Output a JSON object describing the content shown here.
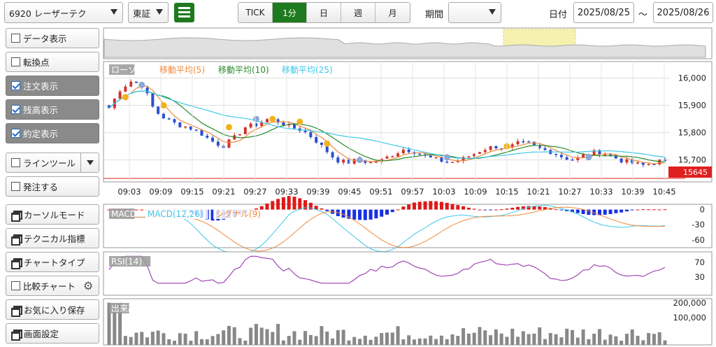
{
  "toolbar": {
    "symbol": "6920 レーザーテク",
    "market": "東証",
    "tabs": [
      "TICK",
      "1分",
      "日",
      "週",
      "月"
    ],
    "active_tab": "1分",
    "period_label": "期間",
    "period_value": "",
    "date_label": "日付",
    "date_from": "2025/08/25",
    "tilde": "～",
    "date_to": "2025/08/26"
  },
  "sidebar": {
    "items": [
      {
        "label": "データ表示",
        "kind": "check",
        "checked": false
      },
      {
        "label": "転換点",
        "kind": "check",
        "checked": false
      },
      {
        "label": "注文表示",
        "kind": "check",
        "checked": true
      },
      {
        "label": "残高表示",
        "kind": "check",
        "checked": true
      },
      {
        "label": "約定表示",
        "kind": "check",
        "checked": true
      },
      {
        "label": "ラインツール",
        "kind": "check-dropdown",
        "checked": false
      },
      {
        "label": "発注する",
        "kind": "check",
        "checked": false
      },
      {
        "label": "カーソルモード",
        "kind": "window"
      },
      {
        "label": "テクニカル指標",
        "kind": "window"
      },
      {
        "label": "チャートタイプ",
        "kind": "window"
      },
      {
        "label": "比較チャート",
        "kind": "check-gear",
        "checked": false
      },
      {
        "label": "お気に入り保存",
        "kind": "window"
      },
      {
        "label": "画面設定",
        "kind": "window"
      }
    ]
  },
  "chart_data": [
    {
      "type": "candlestick",
      "legend": [
        "ローソク",
        "移動平均(5)",
        "移動平均(10)",
        "移動平均(25)"
      ],
      "colors": {
        "up": "#d0342c",
        "down": "#2a4fd0",
        "ma5": "#f08a3c",
        "ma10": "#2a8a2a",
        "ma25": "#3cc8e8",
        "price_line": "#e02020"
      },
      "y_ticks": [
        16000,
        15900,
        15800,
        15700
      ],
      "ylim": [
        15630,
        16050
      ],
      "current_price": "15645",
      "x_ticks": [
        "09:03",
        "09:09",
        "09:15",
        "09:21",
        "09:27",
        "09:33",
        "09:39",
        "09:45",
        "09:51",
        "09:57",
        "10:03",
        "10:09",
        "10:15",
        "10:21",
        "10:27",
        "10:33",
        "10:39",
        "10:45"
      ],
      "approx_close_path": [
        15890,
        15960,
        15990,
        15970,
        15880,
        15850,
        15830,
        15820,
        15800,
        15770,
        15750,
        15780,
        15820,
        15830,
        15850,
        15840,
        15820,
        15810,
        15780,
        15740,
        15700,
        15690,
        15700,
        15690,
        15700,
        15720,
        15740,
        15730,
        15710,
        15700,
        15690,
        15700,
        15720,
        15740,
        15750,
        15740,
        15760,
        15760,
        15740,
        15730,
        15710,
        15700,
        15720,
        15730,
        15720,
        15700,
        15690,
        15680,
        15690,
        15700
      ]
    },
    {
      "type": "line",
      "name": "MACD",
      "legend": [
        "MACD",
        "MACD(12,26)",
        "シグナル(9)"
      ],
      "y_ticks": [
        0,
        -30,
        -60
      ],
      "ylim": [
        -70,
        5
      ]
    },
    {
      "type": "line",
      "name": "RSI",
      "legend": [
        "RSI(14)"
      ],
      "y_ticks": [
        70,
        30
      ],
      "ylim": [
        0,
        100
      ]
    },
    {
      "type": "bar",
      "name": "出来高",
      "legend": [
        "出来高"
      ],
      "y_ticks": [
        "200,000",
        "100,000"
      ],
      "ylim": [
        0,
        280000
      ]
    }
  ]
}
